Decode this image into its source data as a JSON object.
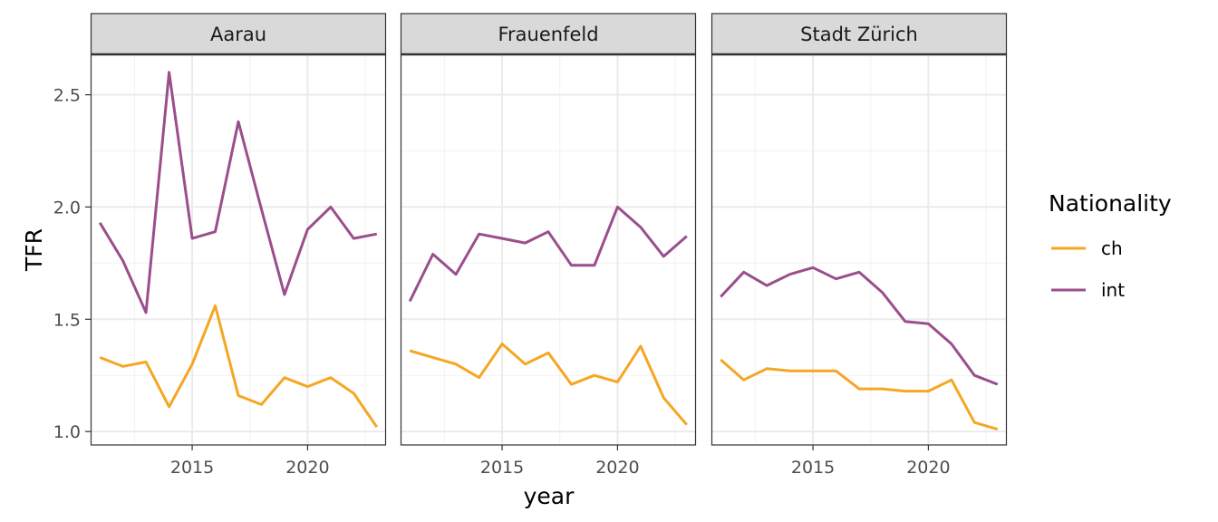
{
  "chart_data": {
    "type": "line",
    "xlabel": "year",
    "ylabel": "TFR",
    "xlim": [
      2010.6,
      2023.4
    ],
    "ylim": [
      0.94,
      2.68
    ],
    "x_ticks": [
      2015,
      2020
    ],
    "y_ticks": [
      1.0,
      1.5,
      2.0,
      2.5
    ],
    "y_tick_labels": [
      "1.0",
      "1.5",
      "2.0",
      "2.5"
    ],
    "grid": true,
    "legend": {
      "title": "Nationality",
      "position": "right",
      "entries": [
        {
          "label": "ch",
          "color": "#F5A623"
        },
        {
          "label": "int",
          "color": "#9A4E8C"
        }
      ]
    },
    "x": [
      2011,
      2012,
      2013,
      2014,
      2015,
      2016,
      2017,
      2018,
      2019,
      2020,
      2021,
      2022,
      2023
    ],
    "panels": [
      {
        "title": "Aarau",
        "series": [
          {
            "name": "ch",
            "values": [
              1.33,
              1.29,
              1.31,
              1.11,
              1.3,
              1.56,
              1.16,
              1.12,
              1.24,
              1.2,
              1.24,
              1.17,
              1.02
            ]
          },
          {
            "name": "int",
            "values": [
              1.93,
              1.76,
              1.53,
              2.6,
              1.86,
              1.89,
              2.38,
              1.99,
              1.61,
              1.9,
              2.0,
              1.86,
              1.88
            ]
          }
        ]
      },
      {
        "title": "Frauenfeld",
        "series": [
          {
            "name": "ch",
            "values": [
              1.36,
              1.33,
              1.3,
              1.24,
              1.39,
              1.3,
              1.35,
              1.21,
              1.25,
              1.22,
              1.38,
              1.15,
              1.03
            ]
          },
          {
            "name": "int",
            "values": [
              1.58,
              1.79,
              1.7,
              1.88,
              1.86,
              1.84,
              1.89,
              1.74,
              1.74,
              2.0,
              1.91,
              1.78,
              1.87
            ]
          }
        ]
      },
      {
        "title": "Stadt Zürich",
        "series": [
          {
            "name": "ch",
            "values": [
              1.32,
              1.23,
              1.28,
              1.27,
              1.27,
              1.27,
              1.19,
              1.19,
              1.18,
              1.18,
              1.23,
              1.04,
              1.01
            ]
          },
          {
            "name": "int",
            "values": [
              1.6,
              1.71,
              1.65,
              1.7,
              1.73,
              1.68,
              1.71,
              1.62,
              1.49,
              1.48,
              1.39,
              1.25,
              1.21
            ]
          }
        ]
      }
    ]
  }
}
